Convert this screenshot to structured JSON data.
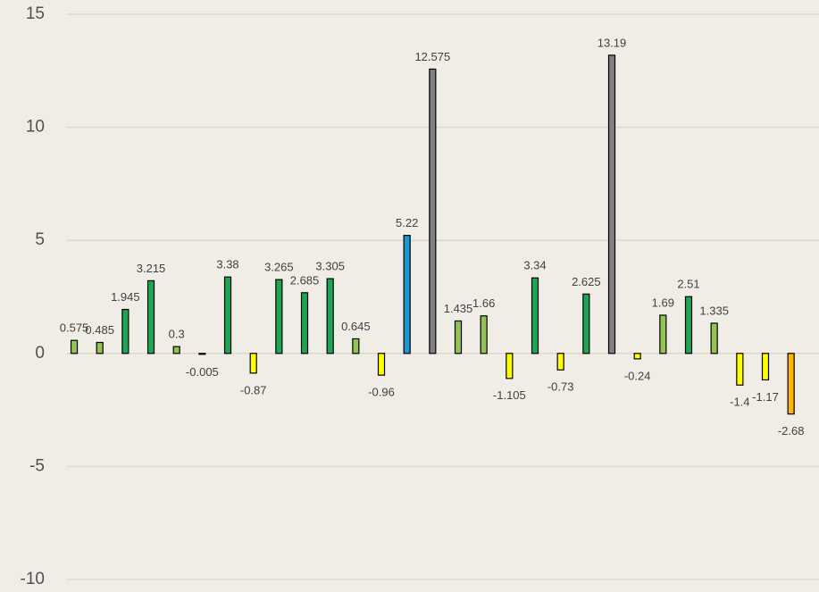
{
  "chart_data": {
    "type": "bar",
    "categories": [
      null,
      null,
      null,
      null,
      null,
      null,
      null,
      null,
      null,
      null,
      null,
      null,
      null,
      null,
      null,
      null,
      null,
      null,
      null,
      null,
      null,
      null,
      null,
      null,
      null,
      null,
      null,
      null,
      null
    ],
    "values": [
      0.575,
      0.485,
      1.945,
      3.215,
      0.3,
      -0.005,
      3.38,
      -0.87,
      3.265,
      2.685,
      3.305,
      0.645,
      -0.96,
      5.22,
      12.575,
      1.435,
      1.66,
      -1.105,
      3.34,
      -0.73,
      2.625,
      13.19,
      -0.24,
      1.69,
      2.51,
      1.335,
      -1.4,
      -1.17,
      -2.68
    ],
    "colors": [
      "#92c353",
      "#92c353",
      "#1ea553",
      "#1ea553",
      "#92c353",
      "#f2e600",
      "#1ea553",
      "#ffff00",
      "#1ea553",
      "#1ea553",
      "#1ea553",
      "#92c353",
      "#ffff00",
      "#1e96d2",
      "#808080",
      "#92c353",
      "#92c353",
      "#ffff00",
      "#1ea553",
      "#ffff00",
      "#1ea553",
      "#808080",
      "#ffff00",
      "#92c353",
      "#1ea553",
      "#92c353",
      "#ffff00",
      "#ffff00",
      "#ffb400"
    ],
    "ylim": [
      -10,
      15
    ],
    "yticks": [
      -10,
      -5,
      0,
      5,
      10,
      15
    ],
    "grid": true
  }
}
